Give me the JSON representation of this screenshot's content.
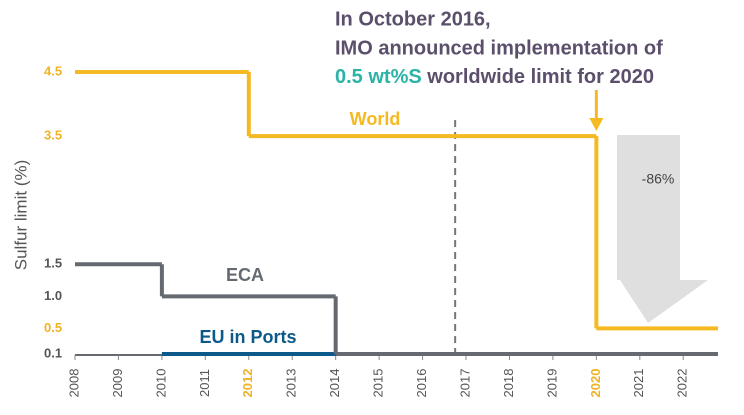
{
  "chart_data": {
    "type": "step",
    "ylabel": "Sulfur limit (%)",
    "xlim": [
      2008,
      2022.8
    ],
    "xticks": [
      2008,
      2009,
      2010,
      2011,
      2012,
      2013,
      2014,
      2015,
      2016,
      2017,
      2018,
      2019,
      2020,
      2021,
      2022
    ],
    "xtick_colors": [
      "#555555",
      "#555555",
      "#555555",
      "#555555",
      "#f0b323",
      "#555555",
      "#555555",
      "#555555",
      "#555555",
      "#555555",
      "#555555",
      "#555555",
      "#f0b323",
      "#555555",
      "#555555"
    ],
    "ylim": [
      0.1,
      4.5
    ],
    "yticks": [
      0.1,
      0.5,
      {
        "value": 1,
        "label": "1.0"
      },
      1.5,
      3.5,
      4.5
    ],
    "ytick_colors": [
      "#555555",
      "#f0b323",
      "#555555",
      "#555555",
      "#f0b323",
      "#f0b323"
    ],
    "series": [
      {
        "name": "World",
        "color": "#f5b921",
        "x": [
          2008,
          2012,
          2020,
          2022.8
        ],
        "values": [
          4.5,
          3.5,
          0.5,
          0.5
        ]
      },
      {
        "name": "ECA",
        "color": "#646a70",
        "x": [
          2008,
          2010,
          2014,
          2022.8
        ],
        "values": [
          1.5,
          1,
          0.1,
          0.1
        ]
      },
      {
        "name": "EU in Ports",
        "color": "#0b5a8a",
        "x": [
          2010,
          2014
        ],
        "values": [
          0.1,
          0.1
        ]
      }
    ],
    "annotation": {
      "lines": [
        "In October 2016,",
        "IMO announced implementation of"
      ],
      "highlight": "0.5 wt%S",
      "highlight_color": "#2ab3a6",
      "rest": " worldwide limit for 2020",
      "x": 2016.75
    },
    "reduction_label": "-86%"
  }
}
